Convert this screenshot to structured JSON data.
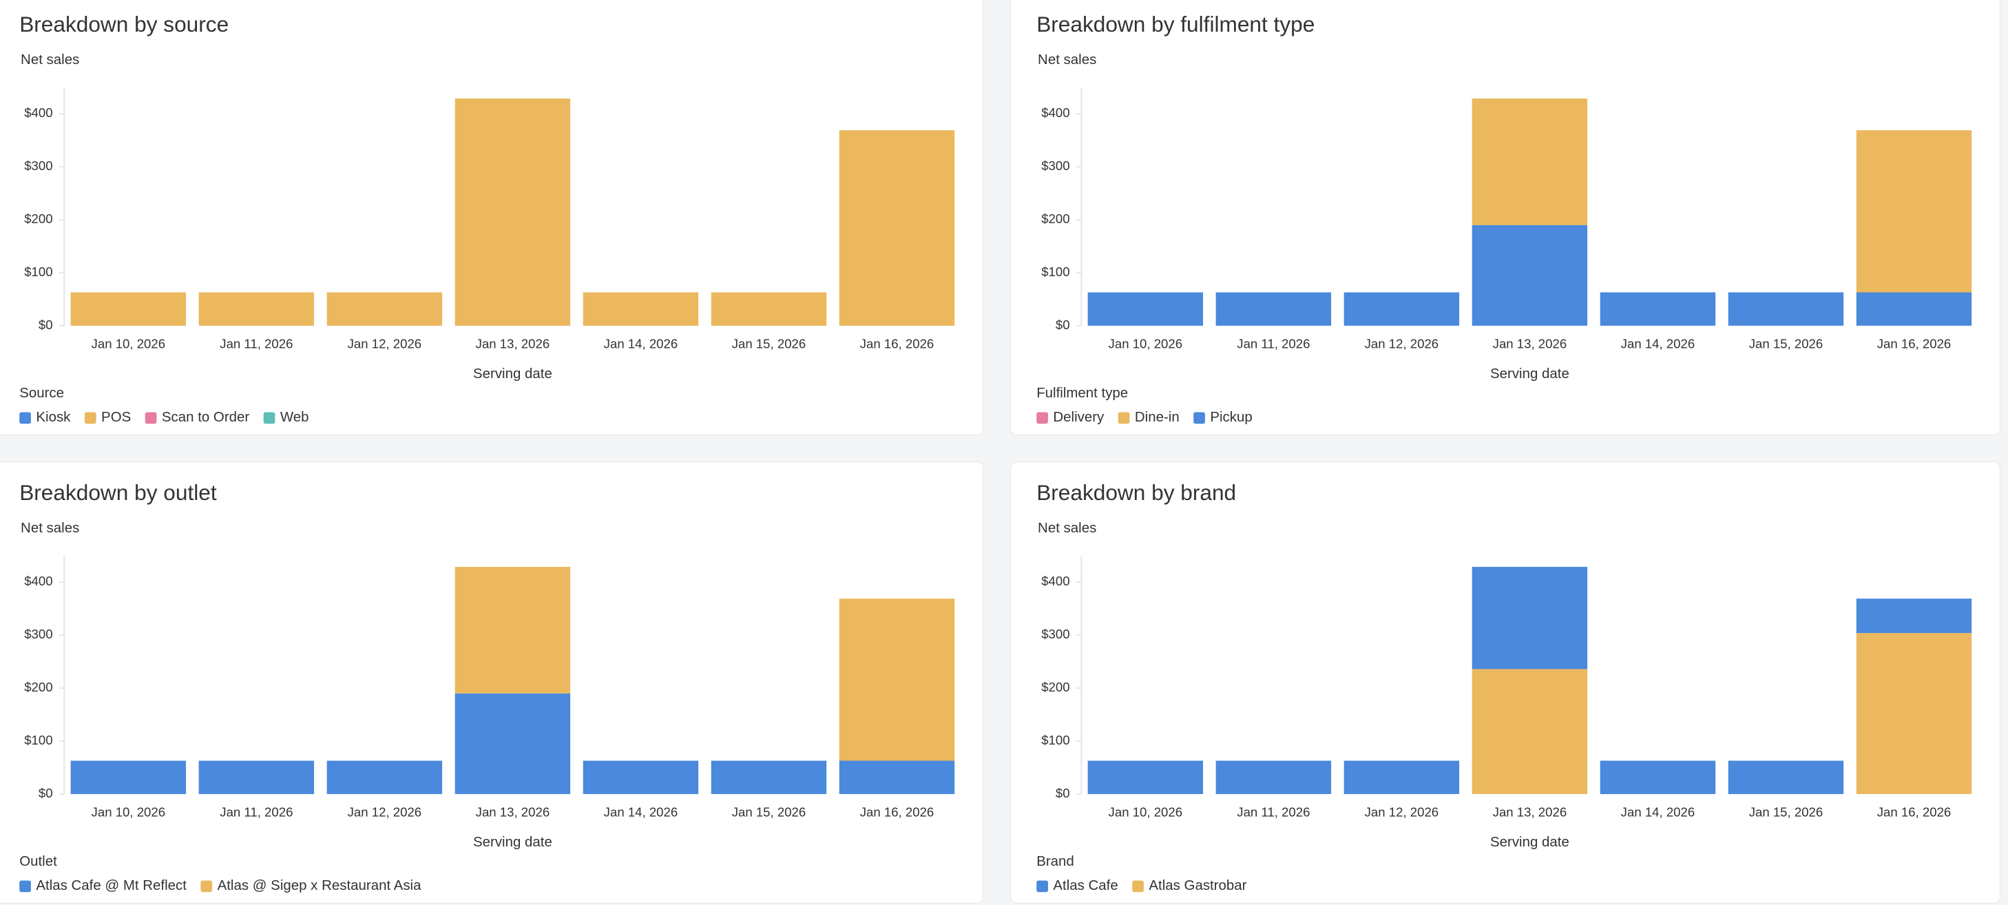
{
  "chart_data": [
    {
      "type": "bar",
      "title": "Breakdown by source",
      "subtitle": "Net sales",
      "x_label": "Serving date",
      "legend_title": "Source",
      "stack_order": "forward",
      "categories": [
        "Jan 10, 2026",
        "Jan 11, 2026",
        "Jan 12, 2026",
        "Jan 13, 2026",
        "Jan 14, 2026",
        "Jan 15, 2026",
        "Jan 16, 2026"
      ],
      "series": [
        {
          "name": "Kiosk",
          "color": "#4a89dc",
          "values": [
            0,
            0,
            0,
            0,
            0,
            0,
            0
          ]
        },
        {
          "name": "POS",
          "color": "#ebb85e",
          "values": [
            63,
            63,
            63,
            429,
            63,
            63,
            369
          ]
        },
        {
          "name": "Scan to Order",
          "color": "#e87ba0",
          "values": [
            0,
            0,
            0,
            0,
            0,
            0,
            0
          ]
        },
        {
          "name": "Web",
          "color": "#5bbfb7",
          "values": [
            0,
            0,
            0,
            0,
            0,
            0,
            0
          ]
        }
      ],
      "ylim": [
        0,
        450
      ],
      "yticks": [
        {
          "value": 0,
          "label": "$0"
        },
        {
          "value": 100,
          "label": "$100"
        },
        {
          "value": 200,
          "label": "$200"
        },
        {
          "value": 300,
          "label": "$300"
        },
        {
          "value": 400,
          "label": "$400"
        }
      ]
    },
    {
      "type": "bar",
      "title": "Breakdown by fulfilment type",
      "subtitle": "Net sales",
      "x_label": "Serving date",
      "legend_title": "Fulfilment type",
      "stack_order": "reverse",
      "categories": [
        "Jan 10, 2026",
        "Jan 11, 2026",
        "Jan 12, 2026",
        "Jan 13, 2026",
        "Jan 14, 2026",
        "Jan 15, 2026",
        "Jan 16, 2026"
      ],
      "series": [
        {
          "name": "Delivery",
          "color": "#e87ba0",
          "values": [
            0,
            0,
            0,
            0,
            0,
            0,
            0
          ]
        },
        {
          "name": "Dine-in",
          "color": "#ebb85e",
          "values": [
            0,
            0,
            0,
            239,
            0,
            0,
            306
          ]
        },
        {
          "name": "Pickup",
          "color": "#4a89dc",
          "values": [
            63,
            63,
            63,
            190,
            63,
            63,
            63
          ]
        }
      ],
      "ylim": [
        0,
        450
      ],
      "yticks": [
        {
          "value": 0,
          "label": "$0"
        },
        {
          "value": 100,
          "label": "$100"
        },
        {
          "value": 200,
          "label": "$200"
        },
        {
          "value": 300,
          "label": "$300"
        },
        {
          "value": 400,
          "label": "$400"
        }
      ]
    },
    {
      "type": "bar",
      "title": "Breakdown by outlet",
      "subtitle": "Net sales",
      "x_label": "Serving date",
      "legend_title": "Outlet",
      "stack_order": "forward",
      "categories": [
        "Jan 10, 2026",
        "Jan 11, 2026",
        "Jan 12, 2026",
        "Jan 13, 2026",
        "Jan 14, 2026",
        "Jan 15, 2026",
        "Jan 16, 2026"
      ],
      "series": [
        {
          "name": "Atlas Cafe @ Mt Reflect",
          "color": "#4a89dc",
          "values": [
            63,
            63,
            63,
            190,
            63,
            63,
            63
          ]
        },
        {
          "name": "Atlas @ Sigep x Restaurant Asia",
          "color": "#ebb85e",
          "values": [
            0,
            0,
            0,
            239,
            0,
            0,
            306
          ]
        }
      ],
      "ylim": [
        0,
        450
      ],
      "yticks": [
        {
          "value": 0,
          "label": "$0"
        },
        {
          "value": 100,
          "label": "$100"
        },
        {
          "value": 200,
          "label": "$200"
        },
        {
          "value": 300,
          "label": "$300"
        },
        {
          "value": 400,
          "label": "$400"
        }
      ]
    },
    {
      "type": "bar",
      "title": "Breakdown by brand",
      "subtitle": "Net sales",
      "x_label": "Serving date",
      "legend_title": "Brand",
      "stack_order": "reverse",
      "categories": [
        "Jan 10, 2026",
        "Jan 11, 2026",
        "Jan 12, 2026",
        "Jan 13, 2026",
        "Jan 14, 2026",
        "Jan 15, 2026",
        "Jan 16, 2026"
      ],
      "series": [
        {
          "name": "Atlas Cafe",
          "color": "#4a89dc",
          "values": [
            63,
            63,
            63,
            193,
            63,
            63,
            65
          ]
        },
        {
          "name": "Atlas Gastrobar",
          "color": "#ebb85e",
          "values": [
            0,
            0,
            0,
            236,
            0,
            0,
            304
          ]
        }
      ],
      "ylim": [
        0,
        450
      ],
      "yticks": [
        {
          "value": 0,
          "label": "$0"
        },
        {
          "value": 100,
          "label": "$100"
        },
        {
          "value": 200,
          "label": "$200"
        },
        {
          "value": 300,
          "label": "$300"
        },
        {
          "value": 400,
          "label": "$400"
        }
      ]
    }
  ]
}
